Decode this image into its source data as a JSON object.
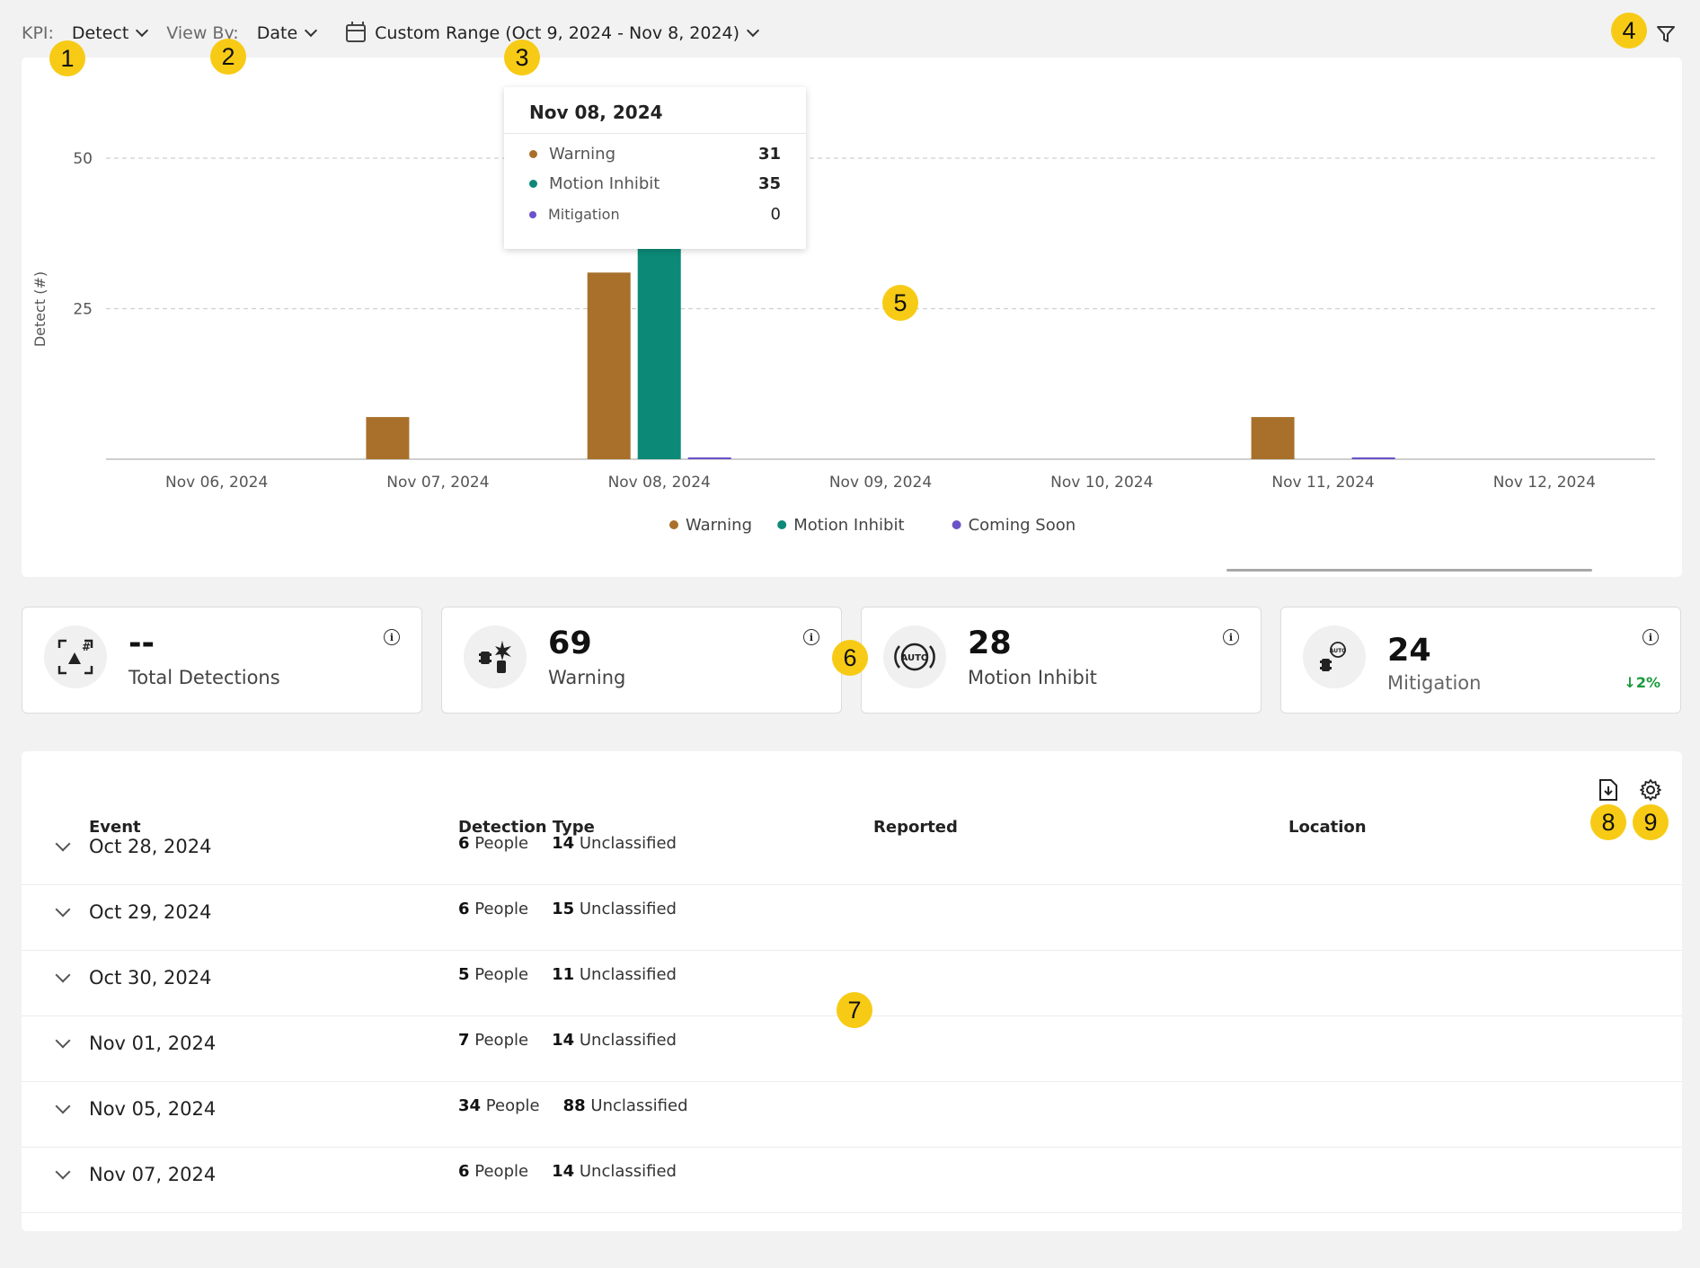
{
  "toolbar": {
    "kpi_label": "KPI:",
    "kpi_value": "Detect",
    "viewby_label": "View By:",
    "viewby_value": "Date",
    "range_value": "Custom Range (Oct 9, 2024 - Nov 8, 2024)"
  },
  "badges": [
    "1",
    "2",
    "3",
    "4",
    "5",
    "6",
    "7",
    "8",
    "9"
  ],
  "colors": {
    "warning": "#a8702a",
    "motion_inhibit": "#0c8a77",
    "coming_soon": "#6b52c8",
    "badge": "#f7cb15"
  },
  "chart_data": {
    "type": "bar",
    "ylabel": "Detect (#)",
    "xlabel": "",
    "y_ticks": [
      "25",
      "50"
    ],
    "ylim": [
      0,
      50
    ],
    "categories": [
      "Nov 06, 2024",
      "Nov 07, 2024",
      "Nov 08, 2024",
      "Nov 09, 2024",
      "Nov 10, 2024",
      "Nov 11, 2024",
      "Nov 12, 2024"
    ],
    "series": [
      {
        "name": "Warning",
        "values": [
          0,
          7,
          31,
          0,
          0,
          7,
          0
        ]
      },
      {
        "name": "Motion Inhibit",
        "values": [
          0,
          0,
          35,
          0,
          0,
          0,
          0
        ]
      },
      {
        "name": "Coming Soon",
        "values": [
          0,
          0,
          0.3,
          0,
          0,
          0.3,
          0
        ]
      }
    ],
    "legend": [
      "Warning",
      "Motion Inhibit",
      "Coming Soon"
    ],
    "legend_position": "bottom-center",
    "grid": true
  },
  "tooltip": {
    "title": "Nov 08, 2024",
    "rows": [
      {
        "name": "Warning",
        "value": "31"
      },
      {
        "name": "Motion Inhibit",
        "value": "35"
      },
      {
        "name": "Mitigation",
        "value": "0"
      }
    ]
  },
  "kpis": [
    {
      "value": "--",
      "label": "Total Detections",
      "icon": "detection-count-icon"
    },
    {
      "value": "69",
      "label": "Warning",
      "icon": "warning-vehicle-icon"
    },
    {
      "value": "28",
      "label": "Motion Inhibit",
      "icon": "auto-brake-icon"
    },
    {
      "value": "24",
      "label": "Mitigation",
      "icon": "mitigation-icon",
      "trend": "↓2%"
    }
  ],
  "table": {
    "headers": {
      "event": "Event",
      "detection_type": "Detection Type",
      "reported": "Reported",
      "location": "Location"
    },
    "rows": [
      {
        "date": "Oct 28, 2024",
        "people": "6",
        "people_label": "People",
        "unclassified": "14",
        "unclassified_label": "Unclassified"
      },
      {
        "date": "Oct 29, 2024",
        "people": "6",
        "people_label": "People",
        "unclassified": "15",
        "unclassified_label": "Unclassified"
      },
      {
        "date": "Oct 30, 2024",
        "people": "5",
        "people_label": "People",
        "unclassified": "11",
        "unclassified_label": "Unclassified"
      },
      {
        "date": "Nov 01, 2024",
        "people": "7",
        "people_label": "People",
        "unclassified": "14",
        "unclassified_label": "Unclassified"
      },
      {
        "date": "Nov 05, 2024",
        "people": "34",
        "people_label": "People",
        "unclassified": "88",
        "unclassified_label": "Unclassified"
      },
      {
        "date": "Nov 07, 2024",
        "people": "6",
        "people_label": "People",
        "unclassified": "14",
        "unclassified_label": "Unclassified"
      }
    ]
  }
}
